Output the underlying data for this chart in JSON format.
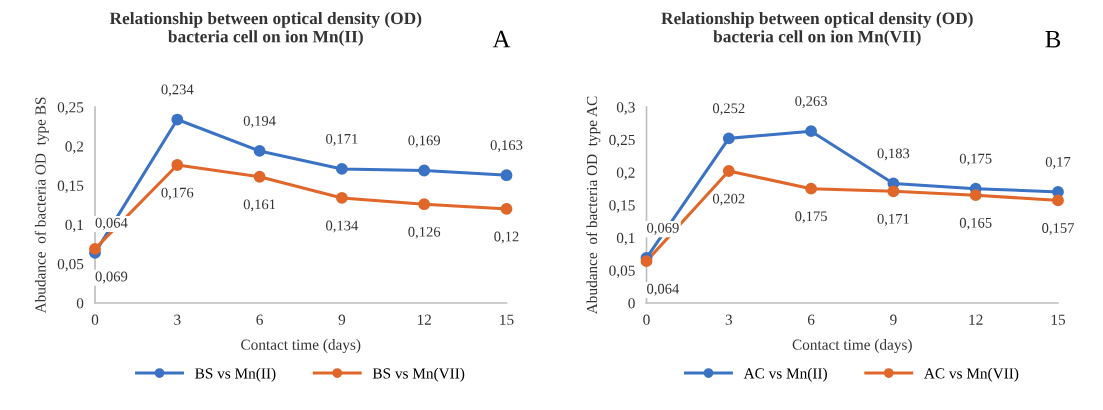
{
  "chart_data": [
    {
      "type": "line",
      "title": "Relationship between optical density (OD)\nbacteria cell on ion Mn(II)",
      "xlabel": "Contact time (days)",
      "ylabel": "Abudance  of bacteria OD  type BS",
      "annotations": [
        "A"
      ],
      "categories": [
        "0",
        "3",
        "6",
        "9",
        "12",
        "15"
      ],
      "series": [
        {
          "name": "BS vs Mn(II)",
          "color": "#3a72c4",
          "values": [
            0.064,
            0.234,
            0.194,
            0.171,
            0.169,
            0.163
          ],
          "value_labels": [
            "0,064",
            "0,234",
            "0,194",
            "0,171",
            "0,169",
            "0,163"
          ]
        },
        {
          "name": "BS vs Mn(VII)",
          "color": "#e0662a",
          "values": [
            0.069,
            0.176,
            0.161,
            0.134,
            0.126,
            0.12
          ],
          "value_labels": [
            "0,069",
            "0,176",
            "0,161",
            "0,134",
            "0,126",
            "0,12"
          ]
        }
      ],
      "ylim": [
        0,
        0.25
      ],
      "yticks": [
        0,
        {
          "value": 0.05,
          "label": "0,05"
        },
        {
          "value": 0.1,
          "label": "0,1"
        },
        {
          "value": 0.15,
          "label": "0,15"
        },
        {
          "value": 0.2,
          "label": "0,2"
        },
        {
          "value": 0.25,
          "label": "0,25"
        }
      ],
      "grid": false,
      "legend": "bottom",
      "marker": "circle",
      "line_style": "solid"
    },
    {
      "type": "line",
      "title": "Relationship between optical density (OD)\nbacteria cell on ion Mn(VII)",
      "xlabel": "Contact time (days)",
      "ylabel": "Abudance  of bacteria OD  type AC",
      "annotations": [
        "B"
      ],
      "categories": [
        "0",
        "3",
        "6",
        "9",
        "12",
        "15"
      ],
      "series": [
        {
          "name": "AC vs Mn(II)",
          "color": "#3a72c4",
          "values": [
            0.069,
            0.252,
            0.263,
            0.183,
            0.175,
            0.17
          ],
          "value_labels": [
            "0,069",
            "0,252",
            "0,263",
            "0,183",
            "0,175",
            "0,17"
          ]
        },
        {
          "name": "AC vs Mn(VII)",
          "color": "#e0662a",
          "values": [
            0.064,
            0.202,
            0.175,
            0.171,
            0.165,
            0.157
          ],
          "value_labels": [
            "0,064",
            "0,202",
            "0,175",
            "0,171",
            "0,165",
            "0,157"
          ]
        }
      ],
      "ylim": [
        0,
        0.3
      ],
      "yticks": [
        0,
        {
          "value": 0.05,
          "label": "0,05"
        },
        {
          "value": 0.1,
          "label": "0,1"
        },
        {
          "value": 0.15,
          "label": "0,15"
        },
        {
          "value": 0.2,
          "label": "0,2"
        },
        {
          "value": 0.25,
          "label": "0,25"
        },
        {
          "value": 0.3,
          "label": "0,3"
        }
      ],
      "grid": false,
      "legend": "bottom",
      "marker": "circle",
      "line_style": "solid"
    }
  ]
}
